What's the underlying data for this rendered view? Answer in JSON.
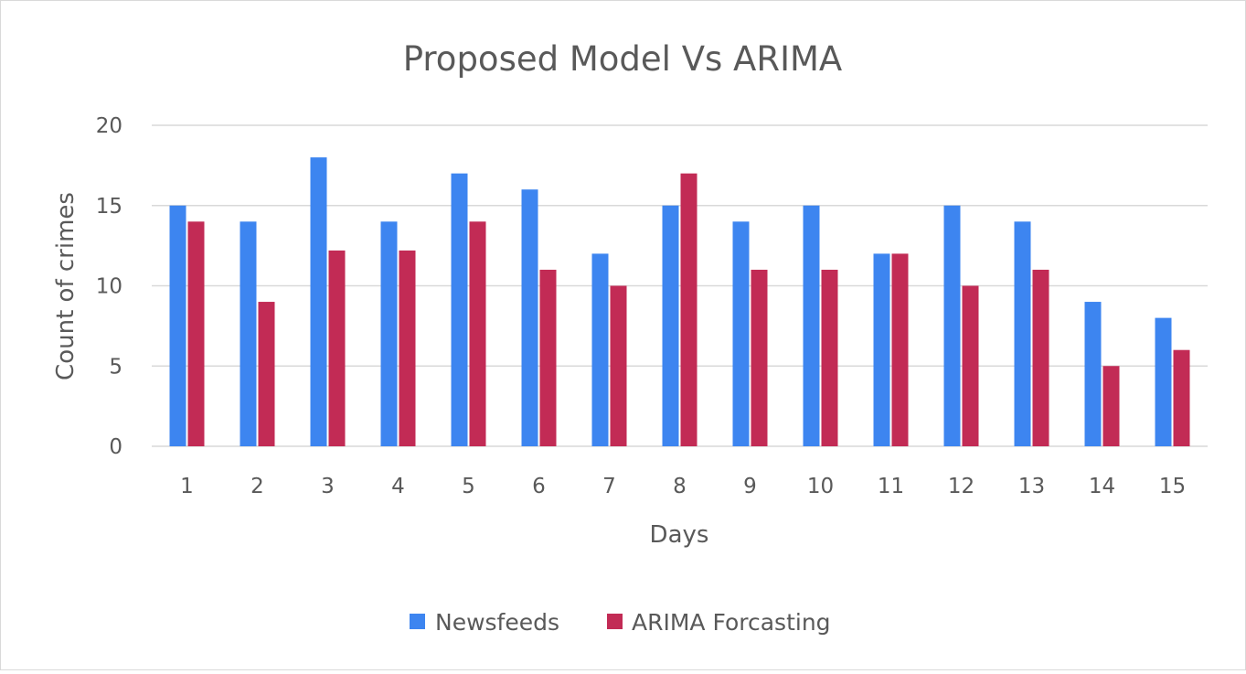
{
  "chart_data": {
    "type": "bar",
    "title": "Proposed Model  Vs ARIMA",
    "xlabel": "Days",
    "ylabel": "Count of crimes",
    "categories": [
      "1",
      "2",
      "3",
      "4",
      "5",
      "6",
      "7",
      "8",
      "9",
      "10",
      "11",
      "12",
      "13",
      "14",
      "15"
    ],
    "series": [
      {
        "name": "Newsfeeds",
        "color": "#3d85f0",
        "values": [
          15,
          14,
          18,
          14,
          17,
          16,
          12,
          15,
          14,
          15,
          12,
          15,
          14,
          9,
          8
        ]
      },
      {
        "name": "ARIMA Forcasting",
        "color": "#c22b55",
        "values": [
          14,
          9,
          12.2,
          12.2,
          14,
          11,
          10,
          17,
          11,
          11,
          12,
          10,
          11,
          5,
          6
        ]
      }
    ],
    "ylim": [
      0,
      20
    ],
    "yticks": [
      0,
      5,
      10,
      15,
      20
    ],
    "grid": true,
    "legend": "bottom"
  }
}
